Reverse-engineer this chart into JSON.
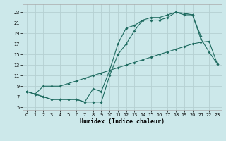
{
  "xlabel": "Humidex (Indice chaleur)",
  "background_color": "#cce8ea",
  "grid_color": "#b5d0d2",
  "line_color": "#1e6b60",
  "xlim": [
    -0.5,
    23.5
  ],
  "ylim": [
    4.5,
    24.5
  ],
  "xticks": [
    0,
    1,
    2,
    3,
    4,
    5,
    6,
    7,
    8,
    9,
    10,
    11,
    12,
    13,
    14,
    15,
    16,
    17,
    18,
    19,
    20,
    21,
    22,
    23
  ],
  "yticks": [
    5,
    7,
    9,
    11,
    13,
    15,
    17,
    19,
    21,
    23
  ],
  "line1_x": [
    0,
    1,
    2,
    3,
    4,
    5,
    6,
    7,
    8,
    9,
    10,
    11,
    12,
    13,
    14,
    15,
    16,
    17,
    18,
    19,
    20,
    21,
    22,
    23
  ],
  "line1_y": [
    8.0,
    7.5,
    7.0,
    6.5,
    6.5,
    6.5,
    6.5,
    6.0,
    6.0,
    6.0,
    11.0,
    15.0,
    17.0,
    19.5,
    21.5,
    21.5,
    21.5,
    22.0,
    23.0,
    22.5,
    22.5,
    18.0,
    15.5,
    13.2
  ],
  "line2_x": [
    0,
    1,
    2,
    3,
    4,
    5,
    6,
    7,
    8,
    9,
    10,
    11,
    12,
    13,
    14,
    15,
    16,
    17,
    18,
    19,
    20,
    21
  ],
  "line2_y": [
    8.0,
    7.5,
    7.0,
    6.5,
    6.5,
    6.5,
    6.5,
    6.0,
    8.5,
    8.0,
    12.0,
    17.0,
    20.0,
    20.5,
    21.5,
    22.0,
    22.0,
    22.5,
    23.0,
    22.8,
    22.5,
    18.5
  ],
  "line3_x": [
    0,
    1,
    2,
    3,
    4,
    5,
    6,
    7,
    8,
    9,
    10,
    11,
    12,
    13,
    14,
    15,
    16,
    17,
    18,
    19,
    20,
    21,
    22,
    23
  ],
  "line3_y": [
    8.0,
    7.5,
    9.0,
    9.0,
    9.0,
    9.5,
    10.0,
    10.5,
    11.0,
    11.5,
    12.0,
    12.5,
    13.0,
    13.5,
    14.0,
    14.5,
    15.0,
    15.5,
    16.0,
    16.5,
    17.0,
    17.3,
    17.5,
    13.2
  ]
}
